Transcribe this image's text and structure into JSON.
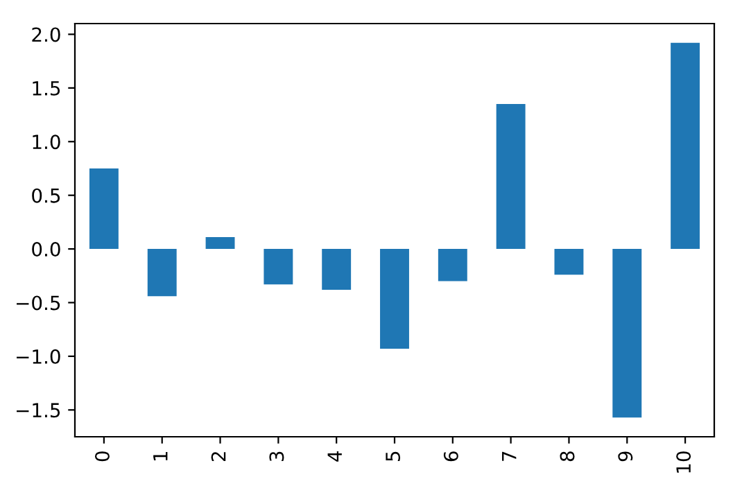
{
  "chart_data": {
    "type": "bar",
    "categories": [
      "0",
      "1",
      "2",
      "3",
      "4",
      "5",
      "6",
      "7",
      "8",
      "9",
      "10"
    ],
    "values": [
      0.75,
      -0.44,
      0.11,
      -0.33,
      -0.38,
      -0.93,
      -0.3,
      1.35,
      -0.24,
      -1.57,
      1.92
    ],
    "color": "#1f77b4",
    "ylim": [
      -1.75,
      2.1
    ],
    "yticks": [
      {
        "value": -1.5,
        "label": "−1.5"
      },
      {
        "value": -1.0,
        "label": "−1.0"
      },
      {
        "value": -0.5,
        "label": "−0.5"
      },
      {
        "value": 0,
        "label": "0.0"
      },
      {
        "value": 0.5,
        "label": "0.5"
      },
      {
        "value": 1.0,
        "label": "1.0"
      },
      {
        "value": 1.5,
        "label": "1.5"
      },
      {
        "value": 2.0,
        "label": "2.0"
      }
    ],
    "grid": false
  }
}
